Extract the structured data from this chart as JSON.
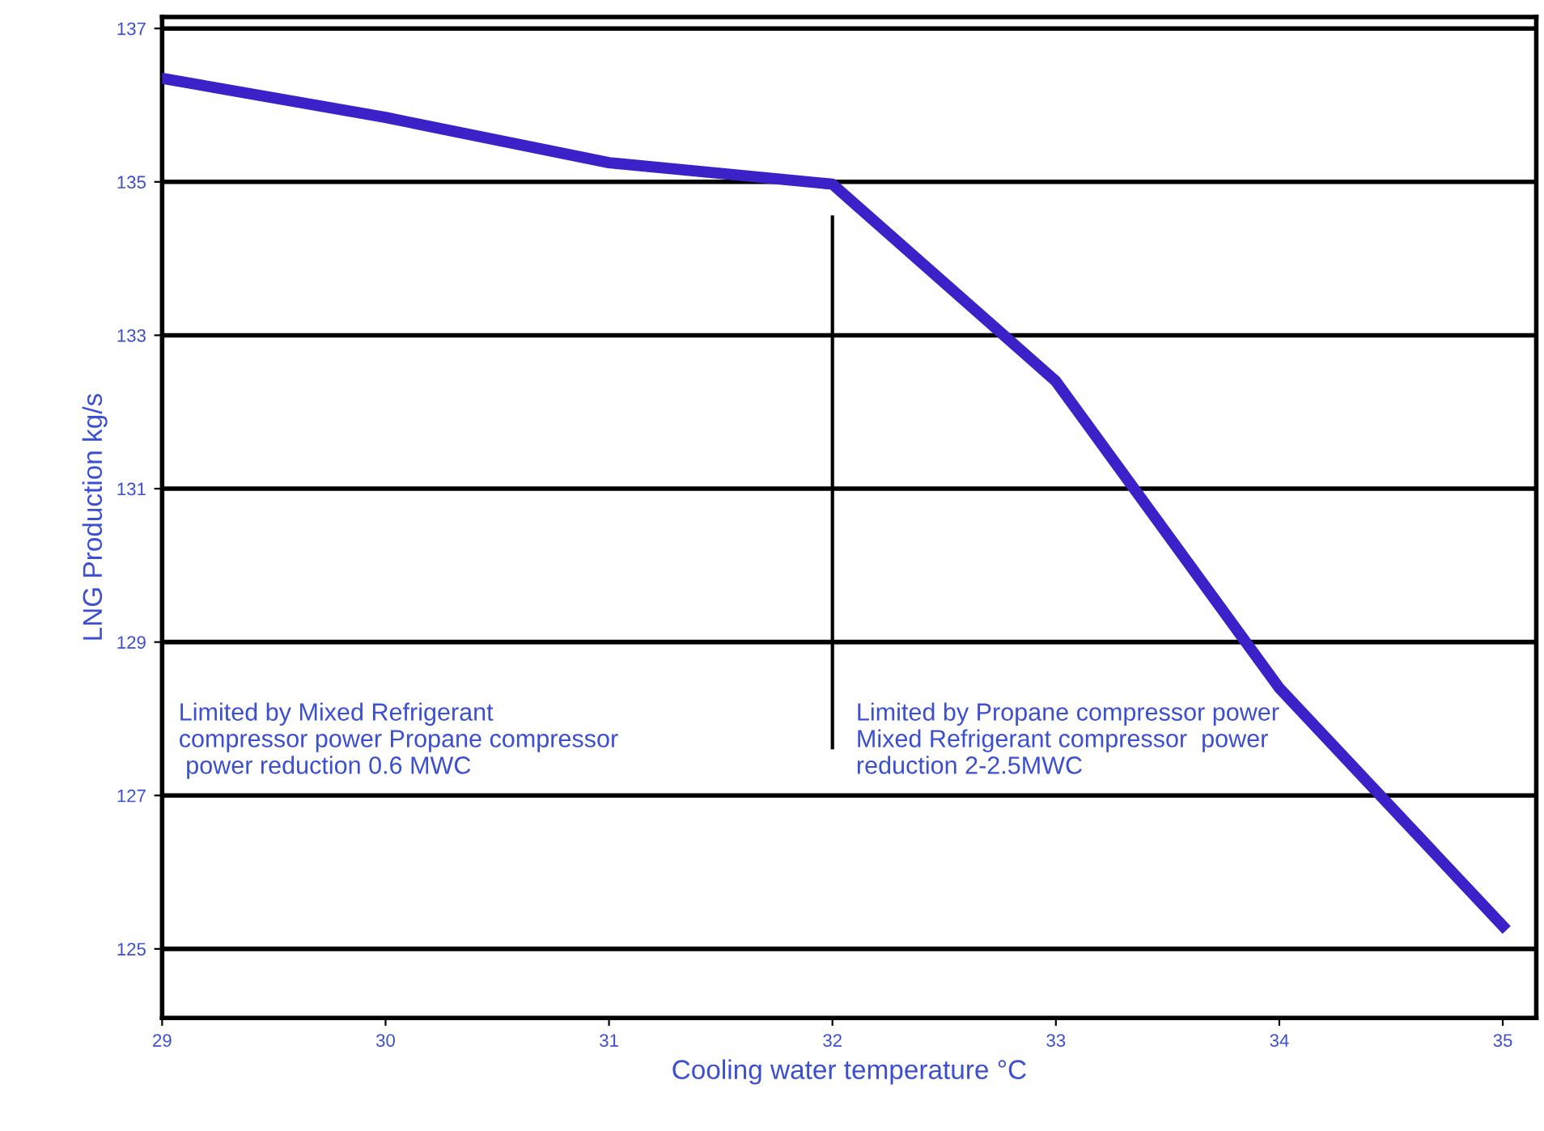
{
  "chart_data": {
    "type": "line",
    "xlabel": "Cooling water temperature °C",
    "ylabel": "LNG Production kg/s",
    "x": [
      29,
      30,
      31,
      32,
      33,
      34,
      35
    ],
    "series": [
      {
        "color": "#3b22c8",
        "values": [
          136.35,
          135.84,
          135.25,
          134.97,
          132.4,
          128.4,
          125.3
        ]
      }
    ],
    "xlim": [
      29,
      35.15
    ],
    "xticks": [
      29,
      30,
      31,
      32,
      33,
      34,
      35
    ],
    "ylim": [
      124.1,
      137.15
    ],
    "yticks": [
      125,
      127,
      129,
      131,
      133,
      135,
      137
    ],
    "grid": "y",
    "marker": "none",
    "line_style": "solid",
    "legend": false,
    "ref_lines": [
      {
        "axis": "x",
        "value": 32,
        "color": "#000000"
      }
    ],
    "annotations": [
      "Limited by Mixed Refrigerant\ncompressor power Propane compressor\n power reduction 0.6 MWC",
      "Limited by Propane compressor power\nMixed Refrigerant compressor  power\nreduction 2-2.5MWC"
    ]
  }
}
